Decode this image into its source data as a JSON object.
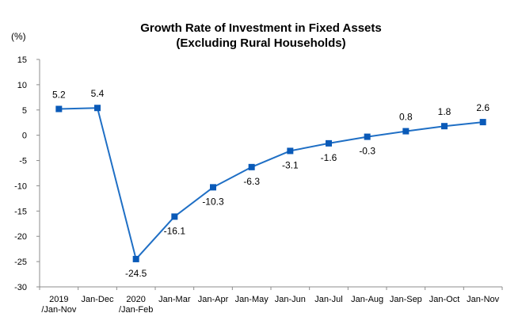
{
  "chart_data": {
    "type": "line",
    "title_line1": "Growth Rate of Investment in Fixed Assets",
    "title_line2": "(Excluding Rural Households)",
    "y_unit": "(%)",
    "categories": [
      [
        "2019",
        "/Jan-Nov"
      ],
      [
        "Jan-Dec"
      ],
      [
        "2020",
        "/Jan-Feb"
      ],
      [
        "Jan-Mar"
      ],
      [
        "Jan-Apr"
      ],
      [
        "Jan-May"
      ],
      [
        "Jan-Jun"
      ],
      [
        "Jan-Jul"
      ],
      [
        "Jan-Aug"
      ],
      [
        "Jan-Sep"
      ],
      [
        "Jan-Oct"
      ],
      [
        "Jan-Nov"
      ]
    ],
    "values": [
      5.2,
      5.4,
      -24.5,
      -16.1,
      -10.3,
      -6.3,
      -3.1,
      -1.6,
      -0.3,
      0.8,
      1.8,
      2.6
    ],
    "data_labels": [
      "5.2",
      "5.4",
      "-24.5",
      "-16.1",
      "-10.3",
      "-6.3",
      "-3.1",
      "-1.6",
      "-0.3",
      "0.8",
      "1.8",
      "2.6"
    ],
    "y_ticks": [
      15,
      10,
      5,
      0,
      -5,
      -10,
      -15,
      -20,
      -25,
      -30
    ],
    "ylim": [
      -30,
      15
    ],
    "grid": false,
    "legend": "none",
    "line_color": "#1f6fc5",
    "marker_color": "#0a5ab8"
  }
}
